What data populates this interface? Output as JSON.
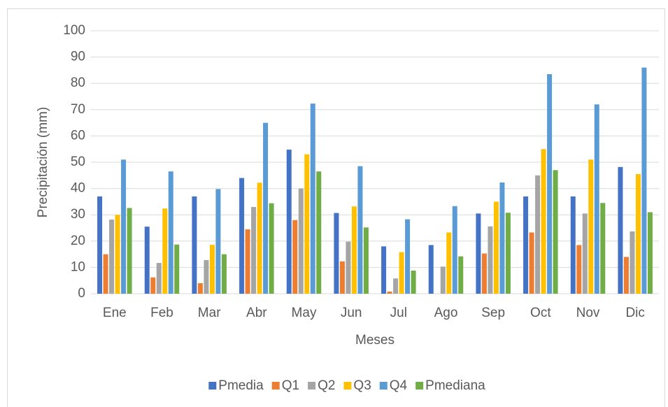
{
  "chart_data": {
    "type": "bar",
    "x_label": "Meses",
    "y_label": "Precipitación (mm)",
    "categories": [
      "Ene",
      "Feb",
      "Mar",
      "Abr",
      "May",
      "Jun",
      "Jul",
      "Ago",
      "Sep",
      "Oct",
      "Nov",
      "Dic"
    ],
    "series": [
      {
        "name": "Pmedia",
        "color": "#4472c4",
        "values": [
          37,
          25.5,
          37,
          44,
          54.8,
          30.7,
          18,
          18.5,
          30.5,
          37,
          37,
          48.2
        ]
      },
      {
        "name": "Q1",
        "color": "#ed7d31",
        "values": [
          15,
          6.2,
          4,
          24.5,
          28,
          12.3,
          0.8,
          0,
          15.3,
          23.3,
          18.5,
          14
        ]
      },
      {
        "name": "Q2",
        "color": "#a5a5a5",
        "values": [
          28.2,
          11.7,
          12.8,
          33,
          40,
          19.8,
          5.8,
          10.3,
          25.6,
          45,
          30.5,
          23.7
        ]
      },
      {
        "name": "Q3",
        "color": "#ffc000",
        "values": [
          30,
          32.4,
          18.6,
          42.2,
          53,
          33.2,
          15.8,
          23.3,
          35,
          55,
          51,
          45.5
        ]
      },
      {
        "name": "Q4",
        "color": "#5b9bd5",
        "values": [
          51,
          46.5,
          39.8,
          65,
          72.3,
          48.5,
          28.3,
          33.3,
          42.3,
          83.5,
          72,
          86
        ]
      },
      {
        "name": "Pmediana",
        "color": "#70ad47",
        "values": [
          32.6,
          18.7,
          15,
          34.4,
          46.5,
          25.2,
          8.8,
          14.2,
          30.8,
          47,
          34.5,
          31
        ]
      }
    ],
    "ylim": [
      0,
      100
    ],
    "yticks": [
      0,
      10,
      20,
      30,
      40,
      50,
      60,
      70,
      80,
      90,
      100
    ],
    "grid": true,
    "legend": "bottom"
  }
}
